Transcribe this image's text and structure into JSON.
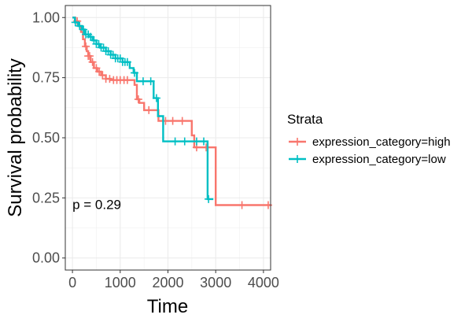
{
  "chart_data": {
    "type": "line",
    "subtype": "kaplan-meier",
    "xlabel": "Time",
    "ylabel": "Survival probability",
    "xlim": [
      -150,
      4150
    ],
    "ylim": [
      -0.05,
      1.05
    ],
    "x_ticks": [
      0,
      1000,
      2000,
      3000,
      4000
    ],
    "x_tick_labels": [
      "0",
      "1000",
      "2000",
      "3000",
      "4000"
    ],
    "y_ticks": [
      0,
      0.25,
      0.5,
      0.75,
      1.0
    ],
    "y_tick_labels": [
      "0.00",
      "0.25",
      "0.50",
      "0.75",
      "1.00"
    ],
    "grid": true,
    "annotation": "p = 0.29",
    "annotation_pos": [
      0,
      0.2
    ],
    "legend": {
      "title": "Strata",
      "placement": "right"
    },
    "series": [
      {
        "name": "expression_category=high",
        "color": "#F8766D",
        "steps": [
          [
            0,
            1.0
          ],
          [
            60,
            0.985
          ],
          [
            130,
            0.965
          ],
          [
            180,
            0.94
          ],
          [
            220,
            0.91
          ],
          [
            260,
            0.88
          ],
          [
            300,
            0.86
          ],
          [
            330,
            0.84
          ],
          [
            380,
            0.815
          ],
          [
            450,
            0.79
          ],
          [
            520,
            0.775
          ],
          [
            600,
            0.76
          ],
          [
            700,
            0.745
          ],
          [
            800,
            0.74
          ],
          [
            1300,
            0.72
          ],
          [
            1350,
            0.66
          ],
          [
            1400,
            0.645
          ],
          [
            1500,
            0.615
          ],
          [
            1800,
            0.57
          ],
          [
            2500,
            0.51
          ],
          [
            2550,
            0.46
          ],
          [
            3000,
            0.22
          ],
          [
            4150,
            0.22
          ]
        ],
        "censor_x": [
          100,
          280,
          330,
          360,
          420,
          500,
          560,
          630,
          700,
          780,
          860,
          930,
          1000,
          1080,
          1150,
          1380,
          1600,
          1950,
          2100,
          2300,
          2600,
          2800,
          3550,
          4100
        ]
      },
      {
        "name": "expression_category=low",
        "color": "#00BFC4",
        "steps": [
          [
            0,
            1.0
          ],
          [
            50,
            0.98
          ],
          [
            120,
            0.965
          ],
          [
            200,
            0.95
          ],
          [
            260,
            0.93
          ],
          [
            340,
            0.92
          ],
          [
            420,
            0.905
          ],
          [
            500,
            0.89
          ],
          [
            580,
            0.875
          ],
          [
            700,
            0.86
          ],
          [
            800,
            0.845
          ],
          [
            900,
            0.83
          ],
          [
            1050,
            0.815
          ],
          [
            1200,
            0.79
          ],
          [
            1280,
            0.77
          ],
          [
            1350,
            0.735
          ],
          [
            1700,
            0.665
          ],
          [
            1790,
            0.59
          ],
          [
            1900,
            0.485
          ],
          [
            2830,
            0.245
          ],
          [
            2950,
            0.245
          ]
        ],
        "censor_x": [
          60,
          150,
          230,
          280,
          330,
          380,
          450,
          500,
          550,
          600,
          650,
          700,
          750,
          800,
          850,
          900,
          950,
          1000,
          1050,
          1100,
          1150,
          1300,
          1480,
          1640,
          1760,
          2150,
          2350,
          2600,
          2750,
          2850
        ]
      }
    ]
  }
}
